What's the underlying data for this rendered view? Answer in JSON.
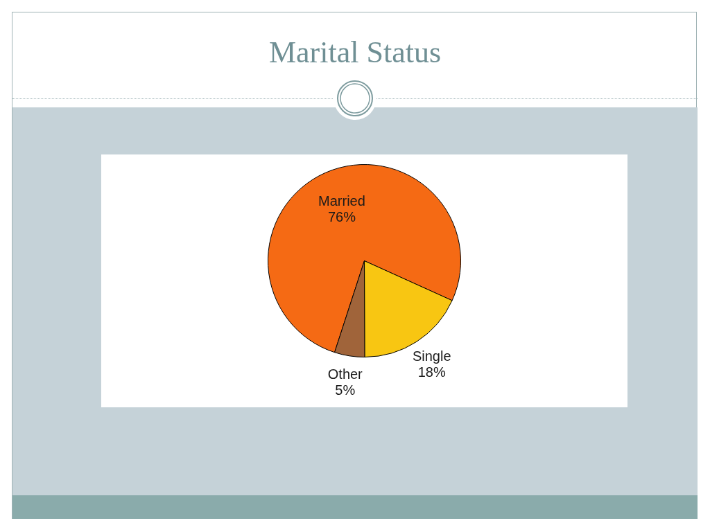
{
  "chart_data": {
    "type": "pie",
    "title": "Marital Status",
    "categories": [
      "Married",
      "Single",
      "Other"
    ],
    "values": [
      76,
      18,
      5
    ],
    "colors": [
      "#f56a14",
      "#f8c612",
      "#a0643a"
    ],
    "value_labels": [
      "76%",
      "18%",
      "5%"
    ]
  }
}
